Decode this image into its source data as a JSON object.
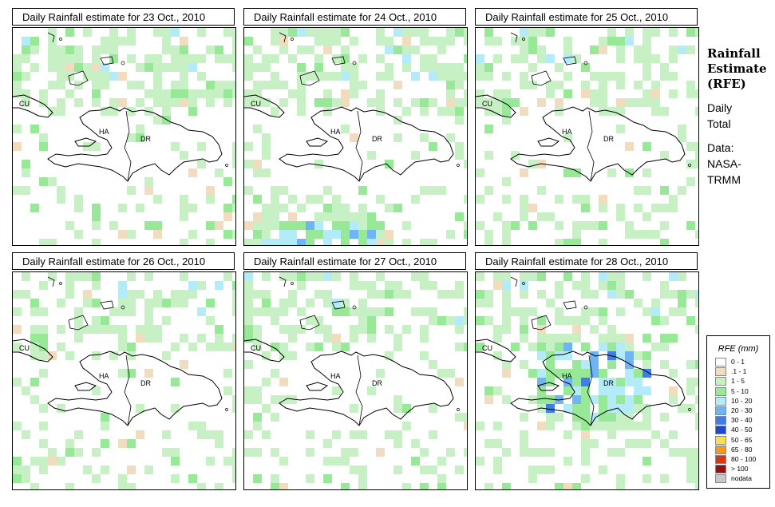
{
  "panels": [
    {
      "title": "Daily Rainfall estimate for  23 Oct., 2010",
      "seed": 23,
      "density": 0.28,
      "north": 0.55,
      "storm": null
    },
    {
      "title": "Daily Rainfall estimate for  24 Oct., 2010",
      "seed": 24,
      "density": 0.3,
      "north": 0.55,
      "storm": "south"
    },
    {
      "title": "Daily Rainfall estimate for  25 Oct., 2010",
      "seed": 25,
      "density": 0.34,
      "north": 0.45,
      "storm": null
    },
    {
      "title": "Daily Rainfall estimate for  26 Oct., 2010",
      "seed": 26,
      "density": 0.26,
      "north": 0.4,
      "storm": null
    },
    {
      "title": "Daily Rainfall estimate for  27 Oct., 2010",
      "seed": 27,
      "density": 0.32,
      "north": 0.45,
      "storm": null
    },
    {
      "title": "Daily Rainfall estimate for  28 Oct., 2010",
      "seed": 28,
      "density": 0.36,
      "north": 0.4,
      "storm": "center"
    }
  ],
  "map_labels": {
    "cuba": "CU",
    "haiti": "HA",
    "dominican_republic": "DR"
  },
  "sidebar": {
    "title": "Rainfall\nEstimate\n(RFE)",
    "period": "Daily\nTotal",
    "source": "Data:\nNASA-\nTRMM"
  },
  "legend": {
    "title": "RFE (mm)",
    "items": [
      {
        "label": "0 - 1",
        "color": "#ffffff"
      },
      {
        "label": ".1 - 1",
        "color": "#f2dcc0"
      },
      {
        "label": "1 - 5",
        "color": "#c7f0c5"
      },
      {
        "label": "5 - 10",
        "color": "#97e897"
      },
      {
        "label": "10 - 20",
        "color": "#b3ecf8"
      },
      {
        "label": "20 - 30",
        "color": "#6fb4f5"
      },
      {
        "label": "30 - 40",
        "color": "#3d7fe6"
      },
      {
        "label": "40 - 50",
        "color": "#2046d6"
      },
      {
        "label": "50 - 65",
        "color": "#f7e04a"
      },
      {
        "label": "65 - 80",
        "color": "#f59a1c"
      },
      {
        "label": "80 - 100",
        "color": "#e2320e"
      },
      {
        "label": "> 100",
        "color": "#9a1010"
      },
      {
        "label": "nodata",
        "color": "#c8c8c8"
      }
    ]
  }
}
